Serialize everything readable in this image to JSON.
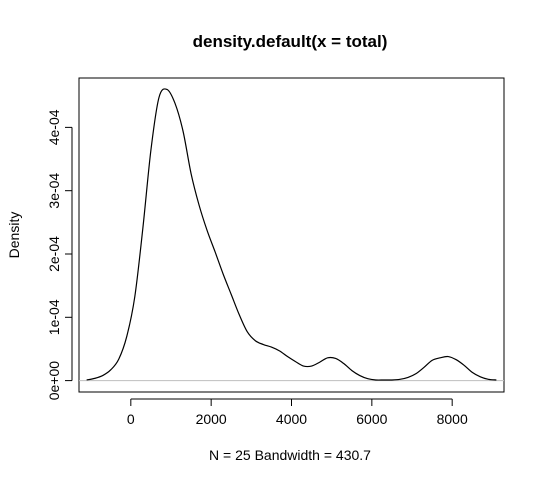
{
  "chart_data": {
    "type": "line",
    "title": "density.default(x = total)",
    "xlabel": "N = 25   Bandwidth = 430.7",
    "ylabel": "Density",
    "xlim": [
      -1290,
      9290
    ],
    "ylim": [
      -1.8e-05,
      0.000478
    ],
    "x_ticks": [
      0,
      2000,
      4000,
      6000,
      8000
    ],
    "x_tick_labels": [
      "0",
      "2000",
      "4000",
      "6000",
      "8000"
    ],
    "y_ticks": [
      0,
      0.0001,
      0.0002,
      0.0003,
      0.0004
    ],
    "y_tick_labels": [
      "0e+00",
      "1e-04",
      "2e-04",
      "3e-04",
      "4e-04"
    ],
    "baseline": {
      "y": 0,
      "color": "#bebebe"
    },
    "grid": false,
    "line_color": "#000000",
    "series": [
      {
        "x": [
          -1100,
          -900,
          -700,
          -500,
          -300,
          -100,
          100,
          300,
          500,
          700,
          900,
          1100,
          1300,
          1500,
          1700,
          1900,
          2100,
          2300,
          2500,
          2700,
          2900,
          3100,
          3300,
          3500,
          3700,
          3900,
          4100,
          4300,
          4500,
          4700,
          4900,
          5100,
          5300,
          5500,
          5700,
          5900,
          6100,
          6300,
          6500,
          6700,
          6900,
          7100,
          7300,
          7500,
          7700,
          7900,
          8100,
          8300,
          8500,
          8700,
          8900,
          9100
        ],
        "y": [
          1e-06,
          3.5e-06,
          8e-06,
          1.7e-05,
          3.4e-05,
          7e-05,
          0.000133,
          0.000241,
          0.000364,
          0.000447,
          0.00046,
          0.000438,
          0.000394,
          0.000327,
          0.000277,
          0.000237,
          0.000203,
          0.000168,
          0.000136,
          0.000104,
          7.7e-05,
          6.3e-05,
          5.7e-05,
          5.3e-05,
          4.7e-05,
          3.8e-05,
          3e-05,
          2.3e-05,
          2.3e-05,
          2.9e-05,
          3.6e-05,
          3.5e-05,
          2.7e-05,
          1.6e-05,
          8e-06,
          3e-06,
          1e-06,
          1e-06,
          1e-06,
          2e-06,
          5e-06,
          1.1e-05,
          2.1e-05,
          3.2e-05,
          3.6e-05,
          3.8e-05,
          3.3e-05,
          2.4e-05,
          1.3e-05,
          6e-06,
          2e-06,
          1e-06
        ]
      }
    ]
  }
}
